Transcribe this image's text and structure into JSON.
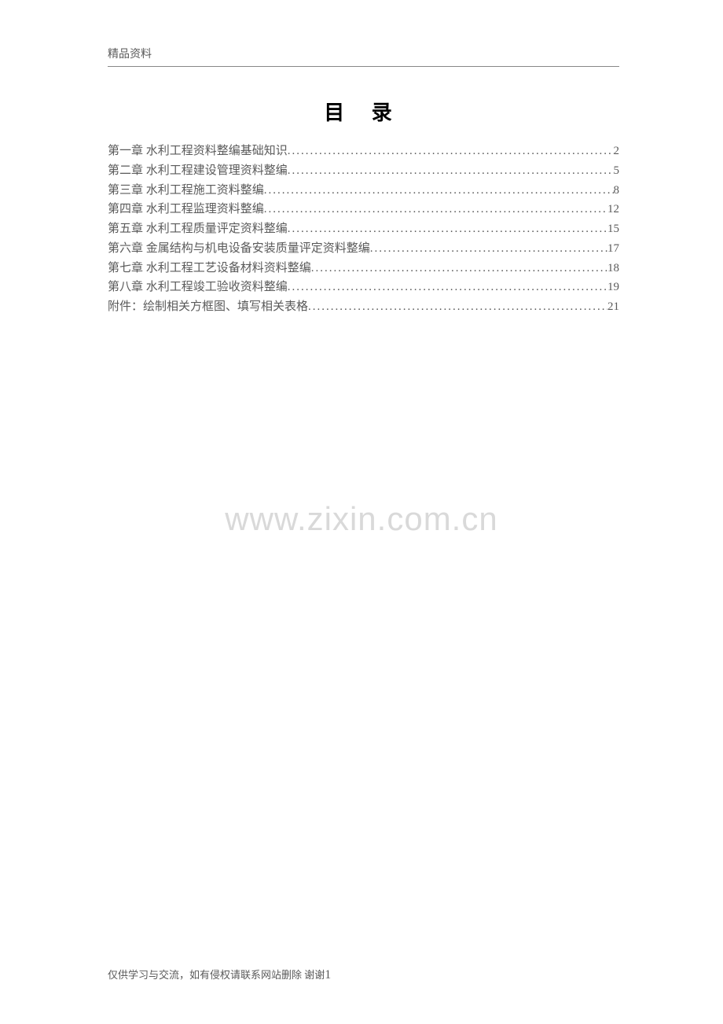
{
  "header": {
    "label": "精品资料"
  },
  "title": "目 录",
  "toc": {
    "entries": [
      {
        "label": "第一章 水利工程资料整编基础知识",
        "page": "2"
      },
      {
        "label": "第二章 水利工程建设管理资料整编",
        "page": "5"
      },
      {
        "label": "第三章 水利工程施工资料整编",
        "page": "8"
      },
      {
        "label": "第四章 水利工程监理资料整编",
        "page": "12"
      },
      {
        "label": "第五章 水利工程质量评定资料整编",
        "page": "15"
      },
      {
        "label": "第六章 金属结构与机电设备安装质量评定资料整编",
        "page": "17"
      },
      {
        "label": "第七章 水利工程工艺设备材料资料整编",
        "page": "18"
      },
      {
        "label": "第八章 水利工程竣工验收资料整编",
        "page": "19"
      },
      {
        "label": "附件：绘制相关方框图、填写相关表格",
        "page": "21"
      }
    ]
  },
  "watermark": "www.zixin.com.cn",
  "footer": {
    "text": "仅供学习与交流，如有侵权请联系网站删除 谢谢",
    "pagenum": "1"
  },
  "colors": {
    "text_gray": "#5a5a5a",
    "text_black": "#000000",
    "watermark_gray": "#d9d9d9",
    "border_gray": "#888888",
    "background": "#ffffff"
  },
  "typography": {
    "header_fontsize": 14,
    "title_fontsize": 26,
    "toc_fontsize": 15,
    "footer_fontsize": 13,
    "watermark_fontsize": 42
  }
}
